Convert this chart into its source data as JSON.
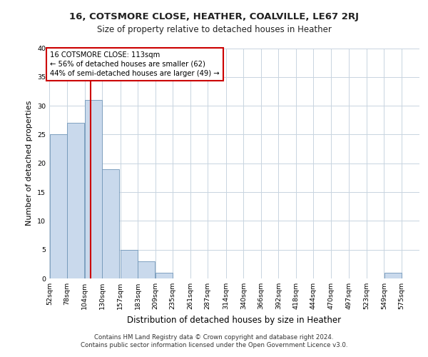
{
  "title1": "16, COTSMORE CLOSE, HEATHER, COALVILLE, LE67 2RJ",
  "title2": "Size of property relative to detached houses in Heather",
  "xlabel": "Distribution of detached houses by size in Heather",
  "ylabel": "Number of detached properties",
  "bins": [
    52,
    78,
    104,
    130,
    157,
    183,
    209,
    235,
    261,
    287,
    314,
    340,
    366,
    392,
    418,
    444,
    470,
    497,
    523,
    549,
    575
  ],
  "bin_labels": [
    "52sqm",
    "78sqm",
    "104sqm",
    "130sqm",
    "157sqm",
    "183sqm",
    "209sqm",
    "235sqm",
    "261sqm",
    "287sqm",
    "314sqm",
    "340sqm",
    "366sqm",
    "392sqm",
    "418sqm",
    "444sqm",
    "470sqm",
    "497sqm",
    "523sqm",
    "549sqm",
    "575sqm"
  ],
  "counts": [
    25,
    27,
    31,
    19,
    5,
    3,
    1,
    0,
    0,
    0,
    0,
    0,
    0,
    0,
    0,
    0,
    0,
    0,
    0,
    1,
    0
  ],
  "bar_color": "#c9d9ec",
  "bar_edge_color": "#7096b8",
  "property_size": 113,
  "red_line_color": "#cc0000",
  "annotation_text": "16 COTSMORE CLOSE: 113sqm\n← 56% of detached houses are smaller (62)\n44% of semi-detached houses are larger (49) →",
  "annotation_box_color": "#ffffff",
  "annotation_box_edge": "#cc0000",
  "ylim": [
    0,
    40
  ],
  "yticks": [
    0,
    5,
    10,
    15,
    20,
    25,
    30,
    35,
    40
  ],
  "background_color": "#ffffff",
  "grid_color": "#c8d4e0",
  "footer1": "Contains HM Land Registry data © Crown copyright and database right 2024.",
  "footer2": "Contains public sector information licensed under the Open Government Licence v3.0."
}
